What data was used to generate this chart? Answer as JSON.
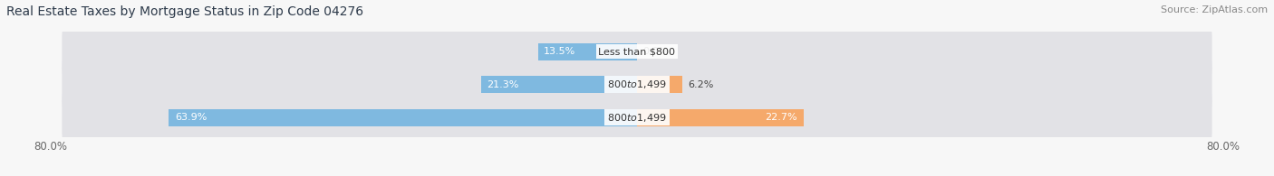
{
  "title": "Real Estate Taxes by Mortgage Status in Zip Code 04276",
  "source": "Source: ZipAtlas.com",
  "bars": [
    {
      "label": "Less than $800",
      "without_mortgage": 13.5,
      "with_mortgage": 0.0
    },
    {
      "label": "$800 to $1,499",
      "without_mortgage": 21.3,
      "with_mortgage": 6.2
    },
    {
      "label": "$800 to $1,499",
      "without_mortgage": 63.9,
      "with_mortgage": 22.7
    }
  ],
  "xlim": [
    -80.0,
    80.0
  ],
  "x_tick_labels_left": "80.0%",
  "x_tick_labels_right": "80.0%",
  "color_without": "#7fb9e0",
  "color_with": "#f5a96b",
  "bg_row": "#e2e2e6",
  "bg_fig": "#f7f7f7",
  "bar_height": 0.52,
  "title_fontsize": 10,
  "source_fontsize": 8,
  "label_fontsize": 8,
  "tick_fontsize": 8.5,
  "legend_fontsize": 9
}
